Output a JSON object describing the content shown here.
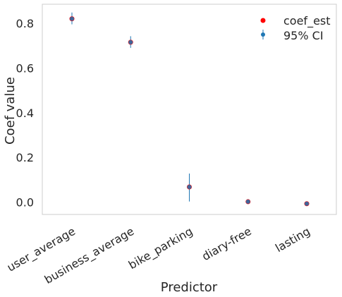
{
  "chart_data": {
    "type": "scatter",
    "xlabel": "Predictor",
    "ylabel": "Coef value",
    "categories": [
      "user_average",
      "business_average",
      "bike_parking",
      "diary-free",
      "lasting"
    ],
    "yticks": [
      "0.0",
      "0.2",
      "0.4",
      "0.6",
      "0.8"
    ],
    "ylim": [
      -0.055,
      0.885
    ],
    "grid": false,
    "legend_position": "top-right",
    "series": [
      {
        "name": "coef_est",
        "color": "#ff0000",
        "values": [
          0.82,
          0.715,
          0.068,
          0.002,
          -0.007
        ]
      },
      {
        "name": "95% CI",
        "color": "#1f77b4",
        "lower": [
          0.795,
          0.69,
          0.003,
          -0.002,
          -0.012
        ],
        "upper": [
          0.848,
          0.742,
          0.128,
          0.006,
          -0.002
        ]
      }
    ]
  }
}
